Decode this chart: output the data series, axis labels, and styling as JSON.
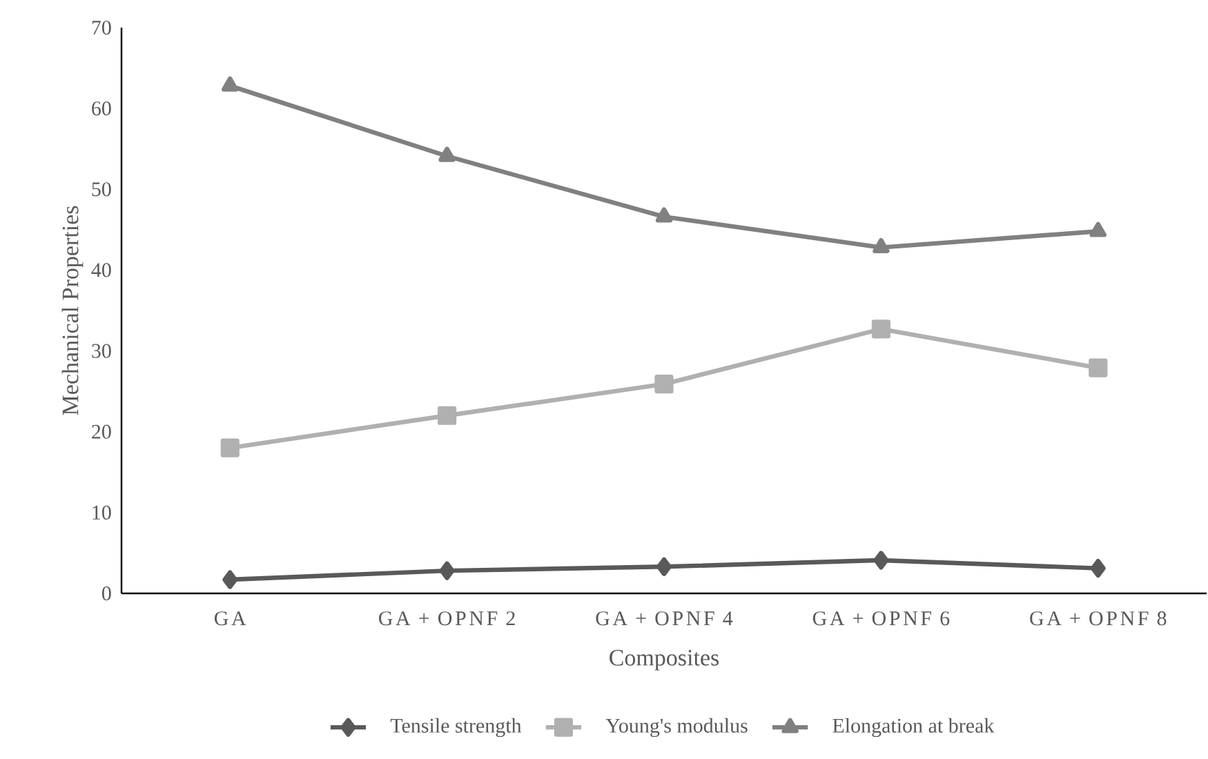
{
  "chart_data": {
    "type": "line",
    "xlabel": "Composites",
    "ylabel": "Mechanical Properties",
    "categories": [
      "GA",
      "GA + OPNF 2",
      "GA + OPNF 4",
      "GA + OPNF 6",
      "GA + OPNF 8"
    ],
    "ylim": [
      0,
      70
    ],
    "yticks": [
      0,
      10,
      20,
      30,
      40,
      50,
      60,
      70
    ],
    "grid": false,
    "legend": "bottom",
    "series": [
      {
        "name": "Tensile strength",
        "color": "#595959",
        "marker": "diamond",
        "values": [
          1.7,
          2.8,
          3.3,
          4.1,
          3.1
        ]
      },
      {
        "name": "Young's modulus",
        "color": "#b0b0b0",
        "marker": "square",
        "values": [
          18.0,
          22.0,
          25.9,
          32.7,
          27.9
        ]
      },
      {
        "name": "Elongation at break",
        "color": "#808080",
        "marker": "triangle",
        "values": [
          62.8,
          54.1,
          46.6,
          42.8,
          44.8
        ]
      }
    ]
  }
}
